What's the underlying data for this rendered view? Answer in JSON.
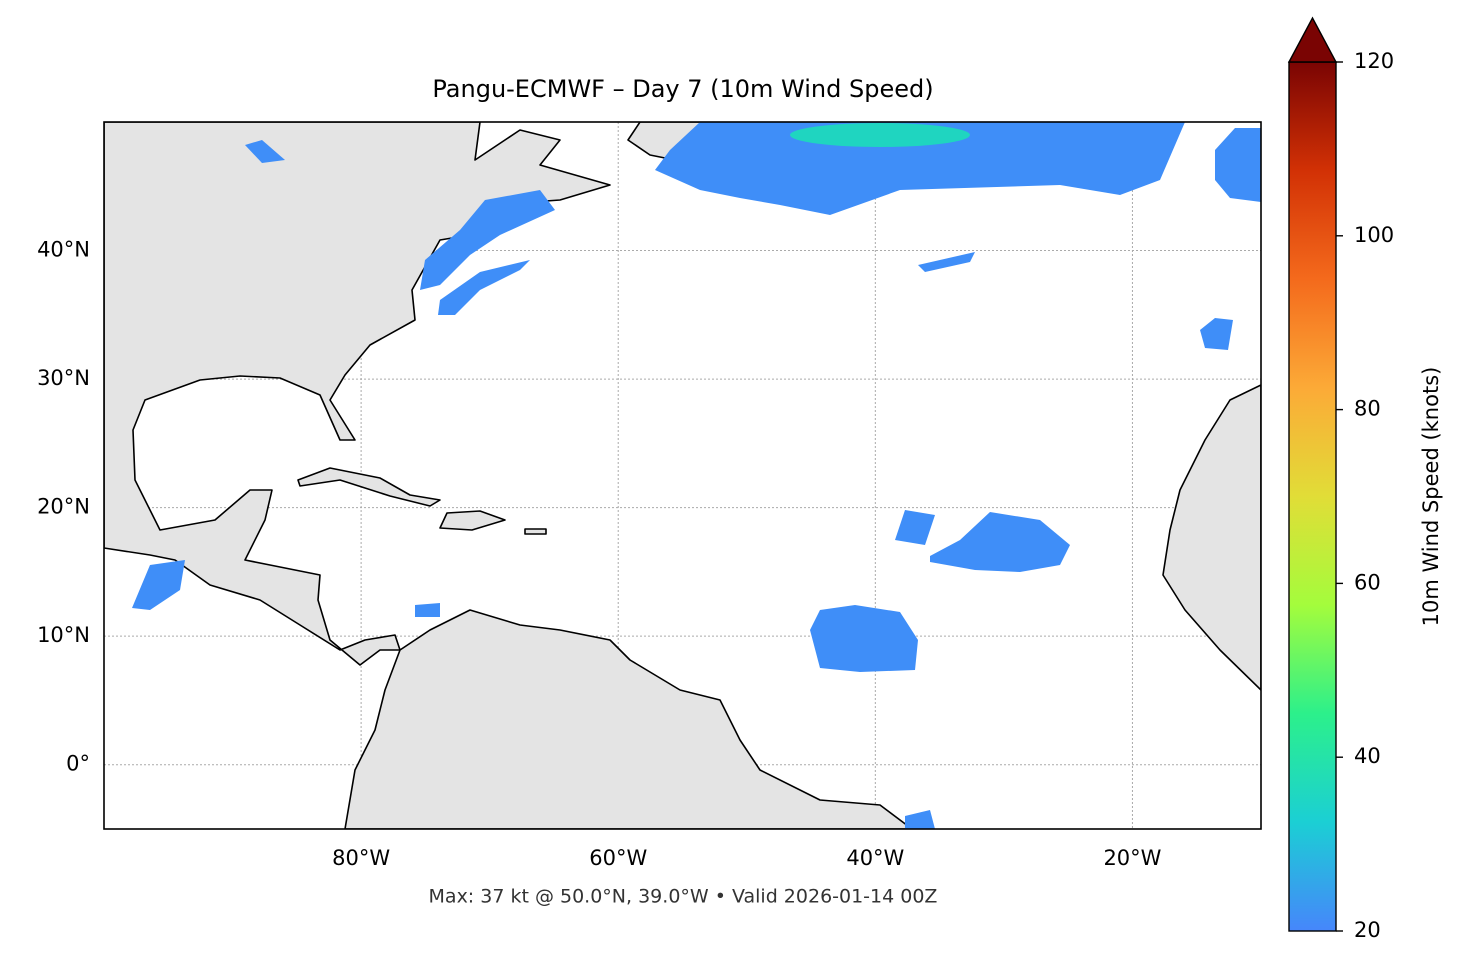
{
  "chart_data": {
    "type": "map",
    "title": "Pangu-ECMWF – Day 7 (10m Wind Speed)",
    "footnote": "Max: 37 kt @ 50.0°N, 39.0°W • Valid 2026-01-14 00Z",
    "xlim": [
      -100,
      -10
    ],
    "ylim": [
      -5,
      50
    ],
    "xticks": [
      {
        "value": -80,
        "label": "80°W"
      },
      {
        "value": -60,
        "label": "60°W"
      },
      {
        "value": -40,
        "label": "40°W"
      },
      {
        "value": -20,
        "label": "20°W"
      }
    ],
    "yticks": [
      {
        "value": 0,
        "label": "0°"
      },
      {
        "value": 10,
        "label": "10°N"
      },
      {
        "value": 20,
        "label": "20°N"
      },
      {
        "value": 30,
        "label": "30°N"
      },
      {
        "value": 40,
        "label": "40°N"
      }
    ],
    "grid": true,
    "colorbar": {
      "label": "10m Wind Speed (knots)",
      "lim": [
        20,
        120
      ],
      "ticks": [
        20,
        40,
        60,
        80,
        100,
        120
      ],
      "extend": "max",
      "colors": [
        "#4686fb",
        "#1bcfd4",
        "#2cf08b",
        "#a4fc3c",
        "#e1dd37",
        "#fcaa37",
        "#f46a1c",
        "#d23105",
        "#7a0403"
      ]
    }
  }
}
